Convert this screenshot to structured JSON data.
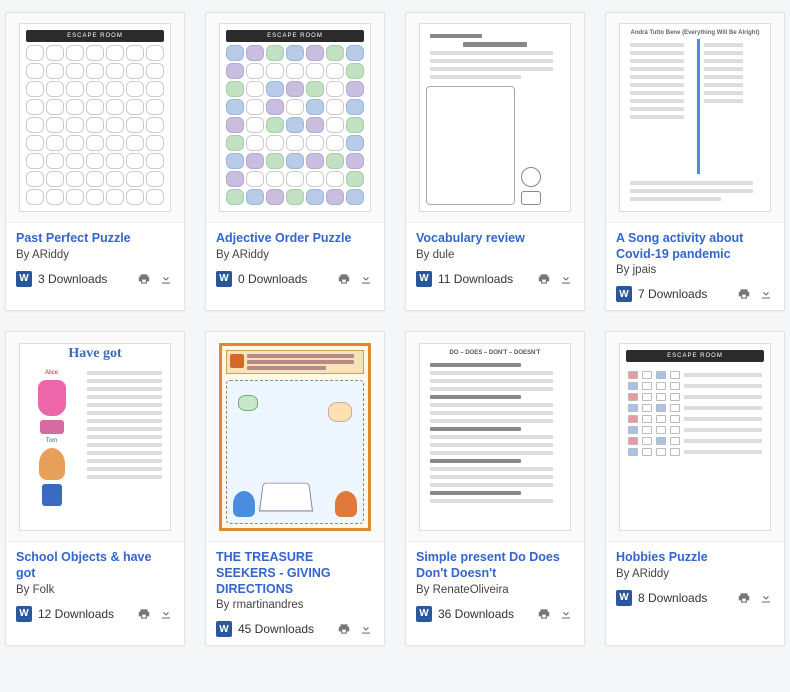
{
  "colors": {
    "link": "#3366cc",
    "text": "#333333",
    "muted": "#777777",
    "doc_icon_bg": "#2a579a",
    "card_bg": "#ffffff",
    "page_bg": "#f5f6f7"
  },
  "doc_icon_label": "W",
  "cards": [
    {
      "title": "Past Perfect Puzzle",
      "author": "By ARiddy",
      "downloads": "3 Downloads",
      "thumb_kind": "escape_grid_plain"
    },
    {
      "title": "Adjective Order Puzzle",
      "author": "By ARiddy",
      "downloads": "0 Downloads",
      "thumb_kind": "escape_grid_color"
    },
    {
      "title": "Vocabulary review",
      "author": "By dule",
      "downloads": "11 Downloads",
      "thumb_kind": "vocab_lines"
    },
    {
      "title": "A Song activity about Covid-19 pandemic",
      "author": "By jpais",
      "downloads": "7 Downloads",
      "thumb_kind": "two_col_lines"
    },
    {
      "title": "School Objects & have got",
      "author": "By Folk",
      "downloads": "12 Downloads",
      "thumb_kind": "havegot"
    },
    {
      "title": "THE TREASURE SEEKERS - GIVING DIRECTIONS",
      "author": "By rmartinandres",
      "downloads": "45 Downloads",
      "thumb_kind": "treasure"
    },
    {
      "title": "Simple present Do Does Don't Doesn't",
      "author": "By RenateOliveira",
      "downloads": "36 Downloads",
      "thumb_kind": "lines_dense"
    },
    {
      "title": "Hobbies Puzzle",
      "author": "By ARiddy",
      "downloads": "8 Downloads",
      "thumb_kind": "hobbies_rows"
    }
  ]
}
